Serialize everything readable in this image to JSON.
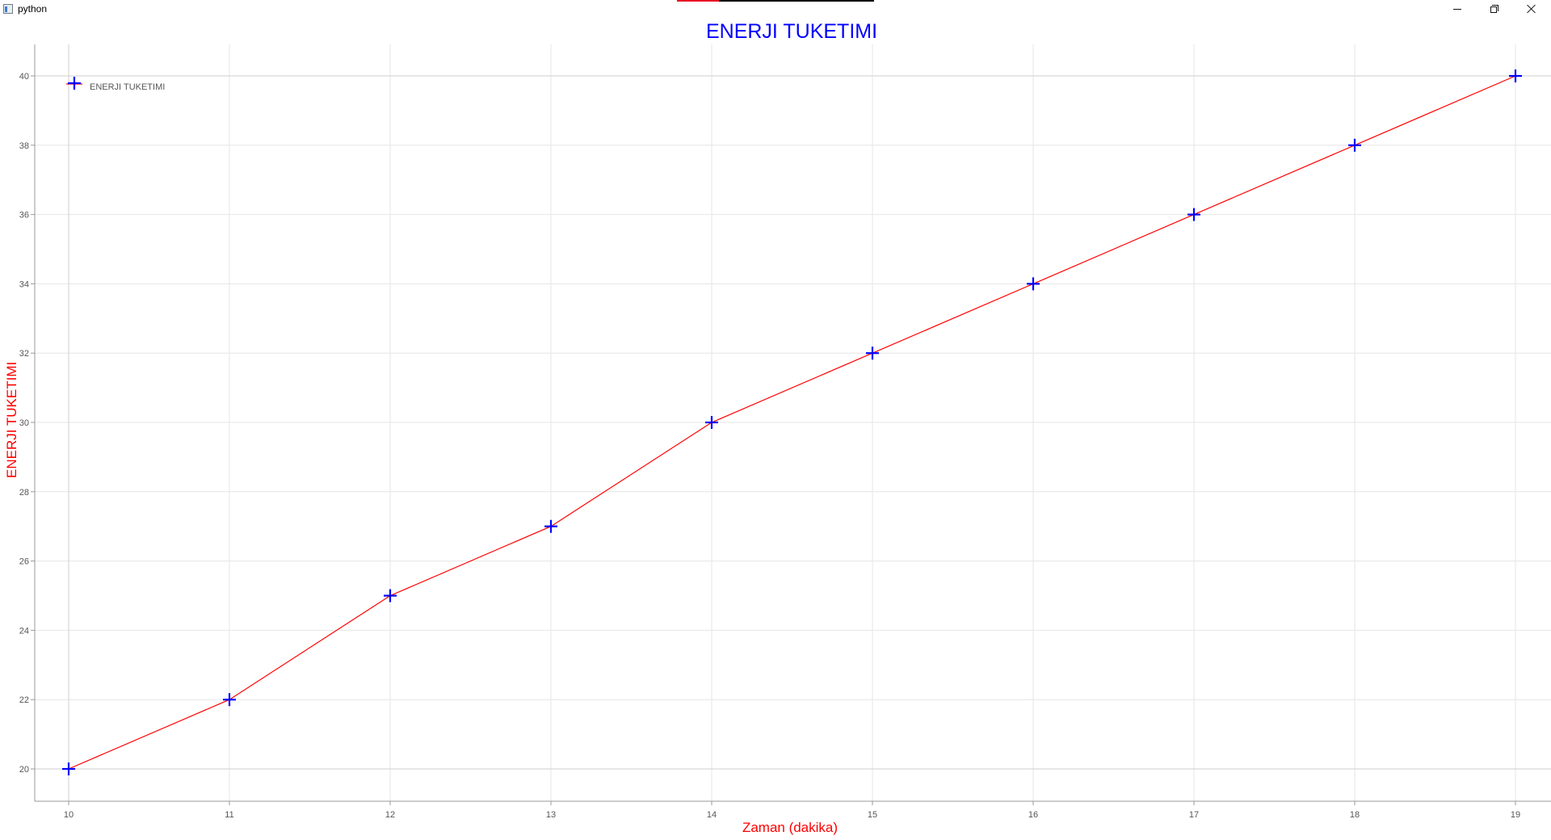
{
  "window": {
    "title": "python",
    "icon": "python-app-icon",
    "controls": [
      "minimize-icon",
      "restore-icon",
      "close-icon"
    ]
  },
  "chart_data": {
    "type": "line",
    "title": "ENERJI TUKETIMI",
    "xlabel": "Zaman (dakika)",
    "ylabel": "ENERJI TUKETIMI",
    "x": [
      10,
      11,
      12,
      13,
      14,
      15,
      16,
      17,
      18,
      19
    ],
    "series": [
      {
        "name": "ENERJI TUKETIMI",
        "values": [
          20,
          22,
          25,
          27,
          30,
          32,
          34,
          36,
          38,
          40
        ],
        "line_color": "#ff0000",
        "marker": "plus",
        "marker_color": "#0000ff"
      }
    ],
    "xticks": [
      "10",
      "11",
      "12",
      "13",
      "14",
      "15",
      "16",
      "17",
      "18",
      "19"
    ],
    "yticks": [
      "20",
      "22",
      "24",
      "26",
      "28",
      "30",
      "32",
      "34",
      "36",
      "38",
      "40"
    ],
    "xlim": [
      10,
      19
    ],
    "ylim": [
      20,
      40
    ],
    "grid": true,
    "legend_position": "top-left",
    "colors": {
      "title": "#0000ff",
      "axis_labels": "#ff0000"
    }
  }
}
